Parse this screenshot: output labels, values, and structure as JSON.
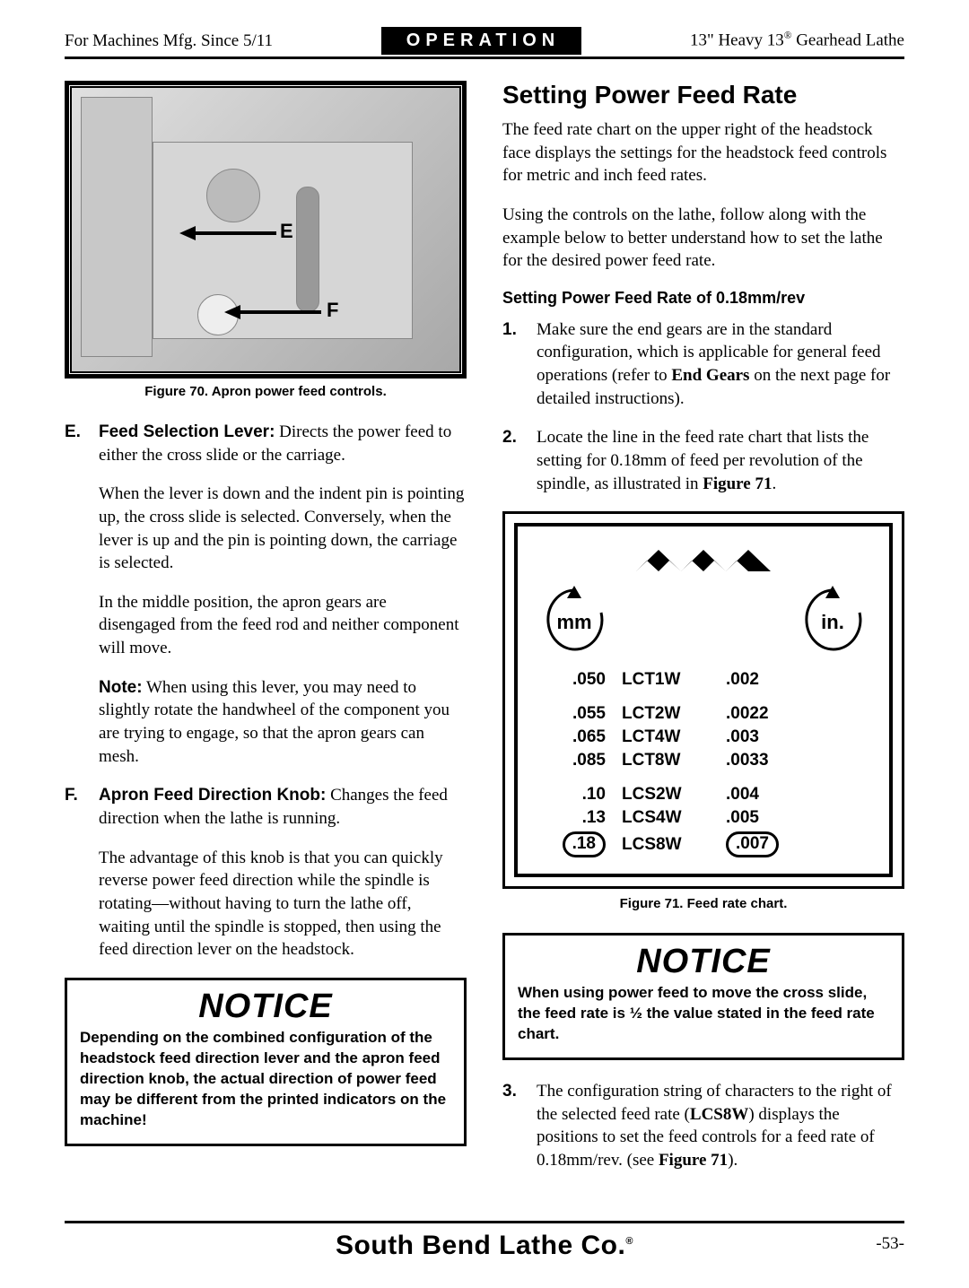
{
  "header": {
    "left": "For Machines Mfg. Since 5/11",
    "center": "OPERATION",
    "right_prefix": "13\" Heavy 13",
    "right_suffix": " Gearhead Lathe"
  },
  "left_col": {
    "figure70_caption": "Figure 70. Apron power feed controls.",
    "item_e_marker": "E.",
    "item_e_head": "Feed Selection Lever:",
    "item_e_text": " Directs the power feed to either the cross slide or the carriage.",
    "item_e_sub1": "When the lever is down and the indent pin is pointing up, the cross slide is selected. Conversely, when the lever is up and the pin is pointing down, the carriage is selected.",
    "item_e_sub2": "In the middle position, the apron gears are disengaged from the feed rod and neither component will move.",
    "note_head": "Note:",
    "note_text": " When using this lever, you may need to slightly rotate the handwheel of the component you are trying to engage, so that the apron gears can mesh.",
    "item_f_marker": "F.",
    "item_f_head": "Apron Feed Direction Knob:",
    "item_f_text": " Changes the feed direction when the lathe is running.",
    "item_f_sub1": "The advantage of this knob is that you can quickly reverse power feed direction while the spindle is rotating—without having to turn the lathe off, waiting until the spindle is stopped, then using the feed direction lever on the headstock.",
    "notice_title": "NOTICE",
    "notice_body": "Depending on the combined configuration of the headstock feed direction lever and the apron feed direction knob, the actual direction of power feed may be different from the printed indicators on the machine!",
    "label_E": "E",
    "label_F": "F"
  },
  "right_col": {
    "heading": "Setting Power Feed Rate",
    "p1": "The feed rate chart on the upper right of the headstock face displays the settings for the headstock feed controls for metric and inch feed rates.",
    "p2": "Using the controls on the lathe, follow along with the example below to better understand how to set the lathe for the desired power feed rate.",
    "sub_heading": "Setting Power Feed Rate of 0.18mm/rev",
    "step1_marker": "1.",
    "step1_a": "Make sure the end gears are in the standard configuration, which is applicable for general feed operations (refer to ",
    "step1_bold": "End Gears",
    "step1_b": " on the next page for detailed instructions).",
    "step2_marker": "2.",
    "step2_a": "Locate the line in the feed rate chart that lists the setting for 0.18mm of feed per revolution of the spindle, as illustrated in ",
    "step2_bold": "Figure 71",
    "step2_b": ".",
    "chart": {
      "head_mm": "mm",
      "head_in": "in.",
      "rows": [
        {
          "mm": ".050",
          "code": "LCT1W",
          "in": ".002",
          "gap_after": true
        },
        {
          "mm": ".055",
          "code": "LCT2W",
          "in": ".0022"
        },
        {
          "mm": ".065",
          "code": "LCT4W",
          "in": ".003"
        },
        {
          "mm": ".085",
          "code": "LCT8W",
          "in": ".0033",
          "gap_after": true
        },
        {
          "mm": ".10",
          "code": "LCS2W",
          "in": ".004"
        },
        {
          "mm": ".13",
          "code": "LCS4W",
          "in": ".005"
        },
        {
          "mm": ".18",
          "code": "LCS8W",
          "in": ".007",
          "highlight": true
        }
      ]
    },
    "figure71_caption": "Figure 71. Feed rate chart.",
    "notice_title": "NOTICE",
    "notice_body": "When using power feed to move the cross slide, the feed rate is ½ the value stated in the feed rate chart.",
    "step3_marker": "3.",
    "step3_a": "The configuration string of characters to the right of the selected feed rate (",
    "step3_bold1": "LCS8W",
    "step3_b": ") displays the positions to set the feed controls for a feed rate of 0.18mm/rev. (see ",
    "step3_bold2": "Figure 71",
    "step3_c": ")."
  },
  "footer": {
    "brand": "South Bend Lathe Co.",
    "page": "-53-"
  }
}
